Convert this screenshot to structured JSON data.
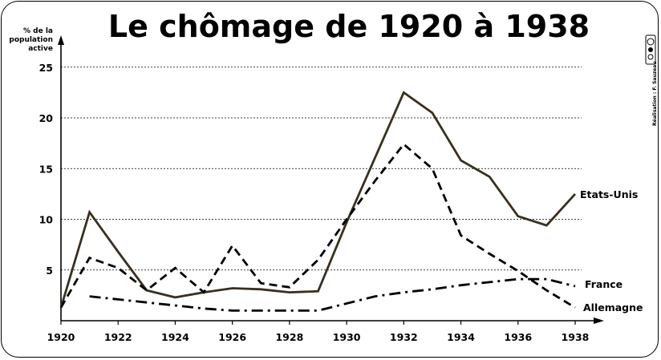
{
  "chart_data": {
    "type": "line",
    "title": "Le chômage de 1920 à 1938",
    "ylabel_lines": [
      "% de la",
      "population",
      "active"
    ],
    "xlim": [
      1920,
      1938
    ],
    "ylim": [
      0,
      26
    ],
    "x_ticks": [
      1920,
      1922,
      1924,
      1926,
      1928,
      1930,
      1932,
      1934,
      1936,
      1938
    ],
    "y_ticks": [
      5,
      10,
      15,
      20,
      25
    ],
    "grid": "horizontal dotted",
    "series": [
      {
        "name": "Etats-Unis",
        "style": "solid",
        "color": "#3a2f1f",
        "x": [
          1920,
          1921,
          1922,
          1923,
          1924,
          1925,
          1926,
          1927,
          1928,
          1929,
          1930,
          1931,
          1932,
          1933,
          1934,
          1935,
          1936,
          1937,
          1938
        ],
        "values": [
          1.3,
          10.7,
          6.8,
          3.0,
          2.3,
          2.8,
          3.2,
          3.1,
          2.8,
          2.9,
          9.7,
          16.1,
          22.5,
          20.5,
          15.8,
          14.2,
          10.3,
          9.4,
          12.5
        ]
      },
      {
        "name": "France",
        "style": "dashed",
        "color": "#000000",
        "x": [
          1920,
          1921,
          1922,
          1923,
          1924,
          1925,
          1926,
          1927,
          1928,
          1929,
          1930,
          1931,
          1932,
          1933,
          1934,
          1935,
          1936,
          1937,
          1938
        ],
        "values": [
          1.3,
          6.2,
          5.2,
          3.0,
          5.2,
          2.8,
          7.4,
          3.7,
          3.3,
          6.0,
          10.0,
          13.8,
          17.4,
          15.0,
          8.4,
          6.6,
          4.9,
          3.0,
          1.3
        ]
      },
      {
        "name": "Allemagne",
        "style": "dash-dot",
        "color": "#000000",
        "x": [
          1921,
          1922,
          1923,
          1924,
          1925,
          1926,
          1927,
          1928,
          1929,
          1930,
          1931,
          1932,
          1933,
          1934,
          1935,
          1936,
          1937,
          1938
        ],
        "values": [
          2.4,
          2.1,
          1.8,
          1.5,
          1.2,
          1.0,
          1.0,
          1.0,
          1.0,
          1.7,
          2.4,
          2.8,
          3.1,
          3.5,
          3.8,
          4.1,
          4.1,
          3.4
        ]
      }
    ]
  },
  "credit": "Réalisation : F. Sauzeau"
}
